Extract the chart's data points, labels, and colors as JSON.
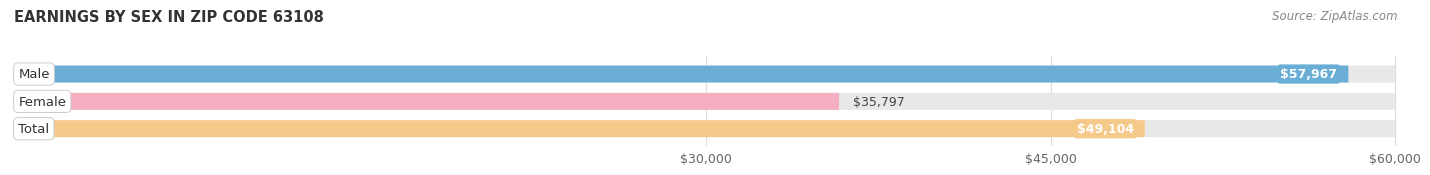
{
  "title": "EARNINGS BY SEX IN ZIP CODE 63108",
  "source": "Source: ZipAtlas.com",
  "categories": [
    "Male",
    "Female",
    "Total"
  ],
  "values": [
    57967,
    35797,
    49104
  ],
  "bar_colors": [
    "#6aaed6",
    "#f5afc0",
    "#f5c98a"
  ],
  "track_color": "#e8e8e8",
  "xmin": 0,
  "xmax": 60000,
  "xticks": [
    30000,
    45000,
    60000
  ],
  "xtick_labels": [
    "$30,000",
    "$45,000",
    "$60,000"
  ],
  "value_label_inside": [
    true,
    false,
    true
  ],
  "value_texts": [
    "$57,967",
    "$35,797",
    "$49,104"
  ],
  "background_color": "#ffffff",
  "title_fontsize": 10.5,
  "source_fontsize": 8.5,
  "tick_fontsize": 9,
  "bar_label_fontsize": 9,
  "cat_label_fontsize": 9.5
}
